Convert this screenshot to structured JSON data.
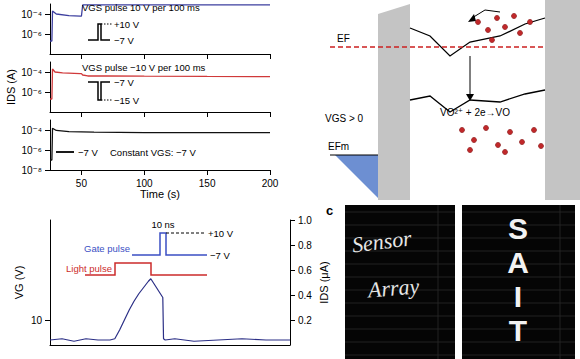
{
  "chart_data": [
    {
      "type": "line",
      "log": "y",
      "grid": false,
      "tick_labels": "y",
      "color": "#3d3f9f",
      "annotations": [
        "VGS pulse 10 V per 100 ms",
        "+10 V",
        "−7 V"
      ],
      "x": [
        25,
        26.5,
        27,
        30,
        40,
        49,
        50,
        51,
        55,
        80,
        120,
        160,
        200
      ],
      "values": [
        2e-07,
        2e-07,
        0.0002,
        0.0001,
        7e-05,
        6e-05,
        6e-05,
        0.0008,
        0.0008,
        0.0008,
        0.0008,
        0.0008,
        0.0008
      ],
      "xlim": [
        25,
        200
      ],
      "xticks": [
        50,
        100,
        150,
        200
      ],
      "ylim": [
        1e-08,
        0.001
      ],
      "yticks": [
        {
          "value": 1e-06,
          "label": "10⁻⁶"
        },
        {
          "value": 0.0001,
          "label": "10⁻⁴"
        }
      ]
    },
    {
      "type": "line",
      "log": "y",
      "grid": false,
      "tick_labels": "y",
      "color": "#d0393a",
      "ylabel": "IDS (A)",
      "annotations": [
        "VGS pulse −10 V per 100 ms",
        "−7 V",
        "−15 V"
      ],
      "x": [
        25,
        26.5,
        27,
        29,
        35,
        49,
        50,
        51,
        55,
        70,
        100,
        150,
        200
      ],
      "values": [
        2e-07,
        2e-07,
        0.0002,
        0.0001,
        8e-05,
        7e-05,
        7e-05,
        5e-05,
        4e-05,
        4e-05,
        3.8e-05,
        3.6e-05,
        3.5e-05
      ],
      "xlim": [
        25,
        200
      ],
      "xticks": [
        50,
        100,
        150,
        200
      ],
      "ylim": [
        1e-08,
        0.001
      ],
      "yticks": [
        {
          "value": 1e-06,
          "label": "10⁻⁶"
        },
        {
          "value": 0.0001,
          "label": "10⁻⁴"
        }
      ]
    },
    {
      "type": "line",
      "log": "y",
      "grid": false,
      "color": "#111111",
      "xlabel": "Time (s)",
      "annotations": [
        "Constant VGS: −7 V",
        "−7 V"
      ],
      "x": [
        25,
        26.5,
        27,
        30,
        40,
        60,
        100,
        150,
        200
      ],
      "values": [
        1e-07,
        1e-07,
        0.00015,
        9e-05,
        7e-05,
        6e-05,
        5.5e-05,
        5.5e-05,
        5.5e-05
      ],
      "xlim": [
        25,
        200
      ],
      "xticks": [
        50,
        100,
        150,
        200
      ],
      "ylim": [
        1e-08,
        0.001
      ],
      "yticks": [
        {
          "value": 1e-08,
          "label": "10⁻⁸"
        },
        {
          "value": 1e-06,
          "label": "10⁻⁶"
        },
        {
          "value": 0.0001,
          "label": "10⁻⁴"
        }
      ]
    },
    {
      "type": "line",
      "grid": false,
      "tick_labels": "y",
      "ylabel": "VG (V)",
      "y2label": "IDS (μA)",
      "annotations": [
        "10 ns",
        "+10 V",
        "Gate pulse",
        "−7 V",
        "Light pulse"
      ],
      "xlim": [
        0,
        100
      ],
      "ylim": [
        9,
        14
      ],
      "yticks": [
        10
      ],
      "y2lim": [
        0,
        1.0
      ],
      "y2ticks": [
        0.2,
        0.4,
        0.6,
        0.8,
        {
          "value": 1.0,
          "label": "1.0"
        }
      ],
      "series": [
        {
          "color": "#2b2f86",
          "axis": "y2",
          "x": [
            0,
            5,
            10,
            15,
            20,
            25,
            27,
            29,
            31,
            33,
            35,
            37,
            39,
            41,
            42,
            43,
            44,
            45,
            46,
            47,
            47.3,
            48,
            52,
            60,
            70,
            80,
            90,
            100
          ],
          "values": [
            0.04,
            0.05,
            0.03,
            0.05,
            0.04,
            0.04,
            0.05,
            0.12,
            0.2,
            0.28,
            0.35,
            0.41,
            0.46,
            0.51,
            0.53,
            0.5,
            0.47,
            0.44,
            0.41,
            0.38,
            0.05,
            0.04,
            0.05,
            0.03,
            0.04,
            0.05,
            0.04,
            0.04
          ]
        }
      ]
    }
  ],
  "diagram": {
    "fermi_level": "EF",
    "bias": "VGS > 0",
    "metal_fermi_level": "EFm",
    "reaction": "VO²⁺ + 2e→VO"
  },
  "images": {
    "label": "c",
    "left": [
      "Sensor",
      "Array"
    ],
    "right": [
      "S",
      "A",
      "I",
      "T"
    ]
  }
}
